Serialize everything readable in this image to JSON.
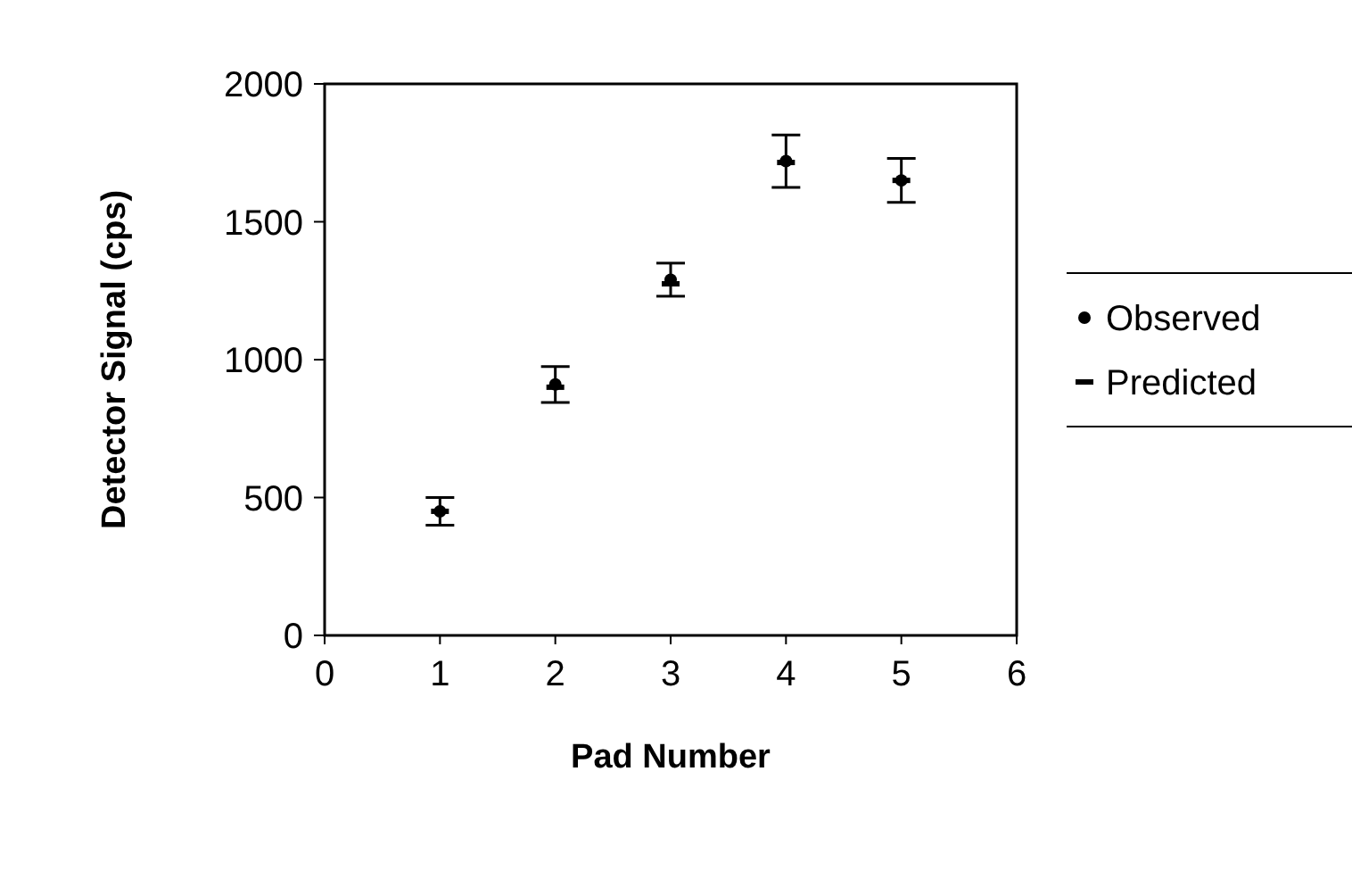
{
  "chart_data": {
    "type": "scatter",
    "xlabel": "Pad Number",
    "ylabel": "Detector Signal (cps)",
    "xlim": [
      0,
      6
    ],
    "xticks": [
      0,
      1,
      2,
      3,
      4,
      5,
      6
    ],
    "ylim": [
      0,
      2000
    ],
    "yticks": [
      0,
      500,
      1000,
      1500,
      2000
    ],
    "grid": false,
    "legend": "right",
    "series": [
      {
        "name": "Observed",
        "color": "#000000",
        "marker": "circle",
        "x": [
          1,
          2,
          3,
          4,
          5
        ],
        "values": [
          450,
          910,
          1290,
          1720,
          1650
        ],
        "errors": [
          50,
          65,
          60,
          95,
          80
        ]
      },
      {
        "name": "Predicted",
        "color": "#000000",
        "marker": "square",
        "x": [
          1,
          2,
          3,
          4,
          5
        ],
        "values": [
          450,
          900,
          1275,
          1715,
          1650
        ]
      }
    ]
  }
}
